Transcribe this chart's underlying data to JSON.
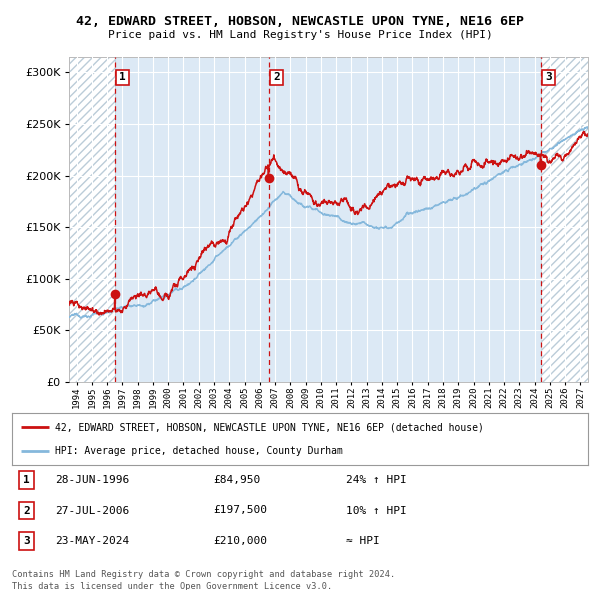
{
  "title": "42, EDWARD STREET, HOBSON, NEWCASTLE UPON TYNE, NE16 6EP",
  "subtitle": "Price paid vs. HM Land Registry's House Price Index (HPI)",
  "ytick_values": [
    0,
    50000,
    100000,
    150000,
    200000,
    250000,
    300000
  ],
  "ylim": [
    0,
    315000
  ],
  "xlim_start": 1993.5,
  "xlim_end": 2027.5,
  "purchases": [
    {
      "label": "1",
      "date_str": "28-JUN-1996",
      "date_num": 1996.49,
      "price": 84950,
      "info": "24% ↑ HPI"
    },
    {
      "label": "2",
      "date_str": "27-JUL-2006",
      "date_num": 2006.57,
      "price": 197500,
      "info": "10% ↑ HPI"
    },
    {
      "label": "3",
      "date_str": "23-MAY-2024",
      "date_num": 2024.39,
      "price": 210000,
      "info": "≈ HPI"
    }
  ],
  "legend_line1": "42, EDWARD STREET, HOBSON, NEWCASTLE UPON TYNE, NE16 6EP (detached house)",
  "legend_line2": "HPI: Average price, detached house, County Durham",
  "footer1": "Contains HM Land Registry data © Crown copyright and database right 2024.",
  "footer2": "This data is licensed under the Open Government Licence v3.0.",
  "background_color": "#ffffff",
  "plot_bg_color": "#dce9f5",
  "hatch_bg_color": "#e8eef4",
  "grid_color": "#ffffff",
  "hpi_line_color": "#85b8dc",
  "price_line_color": "#cc1111",
  "dashed_line_color": "#cc1111",
  "xtick_years": [
    1994,
    1995,
    1996,
    1997,
    1998,
    1999,
    2000,
    2001,
    2002,
    2003,
    2004,
    2005,
    2006,
    2007,
    2008,
    2009,
    2010,
    2011,
    2012,
    2013,
    2014,
    2015,
    2016,
    2017,
    2018,
    2019,
    2020,
    2021,
    2022,
    2023,
    2024,
    2025,
    2026,
    2027
  ]
}
